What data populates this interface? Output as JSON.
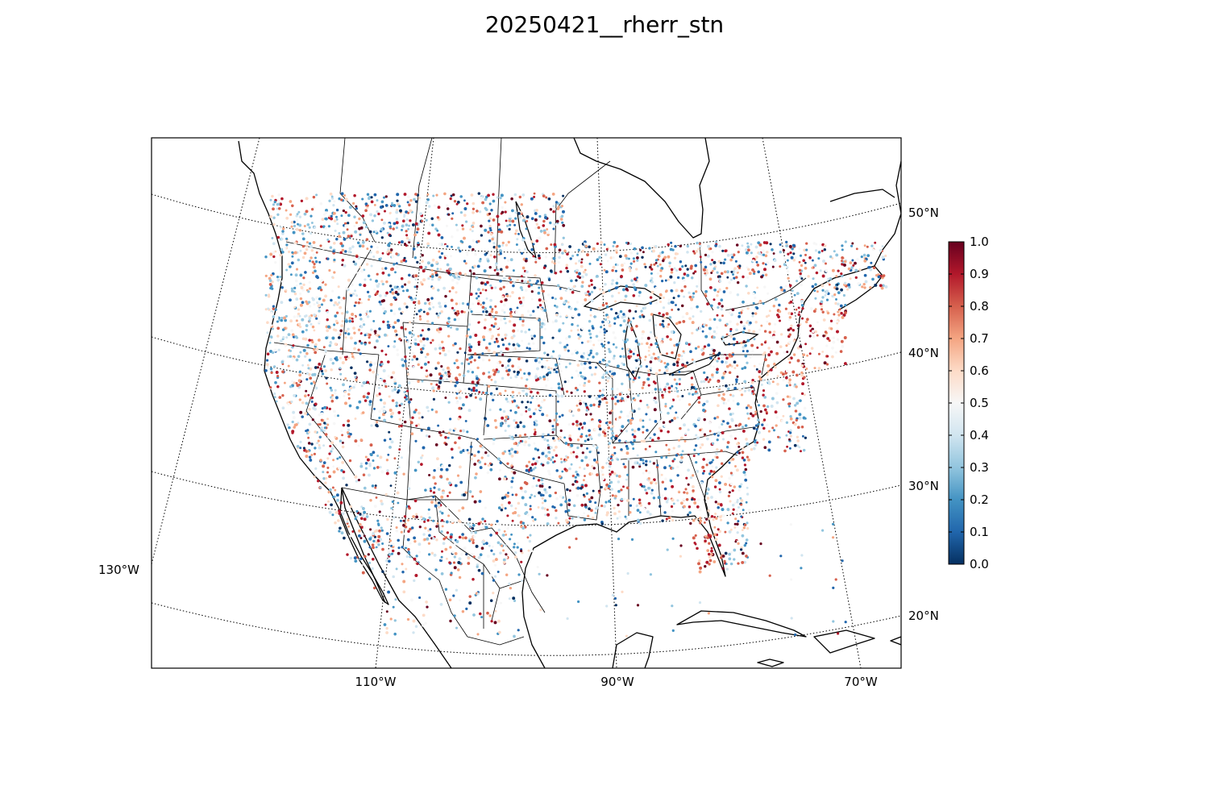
{
  "title": "20250421__rherr_stn",
  "map": {
    "projection": "lambert-conformal",
    "lat_labels": [
      "50°N",
      "40°N",
      "30°N",
      "20°N"
    ],
    "lon_labels": [
      "130°W",
      "110°W",
      "90°W",
      "70°W"
    ],
    "colorbar": {
      "colormap": "RdBu_r",
      "range": [
        0.0,
        1.0
      ],
      "ticks": [
        "1.0",
        "0.9",
        "0.8",
        "0.7",
        "0.6",
        "0.5",
        "0.4",
        "0.3",
        "0.2",
        "0.1",
        "0.0"
      ],
      "colors": [
        "#053061",
        "#2166ac",
        "#4393c3",
        "#92c5de",
        "#d1e5f0",
        "#f7f7f7",
        "#fddbc7",
        "#f4a582",
        "#d6604d",
        "#b2182b",
        "#67001f"
      ]
    },
    "stations": "thousands of station points across North America, values 0.0-1.0"
  }
}
